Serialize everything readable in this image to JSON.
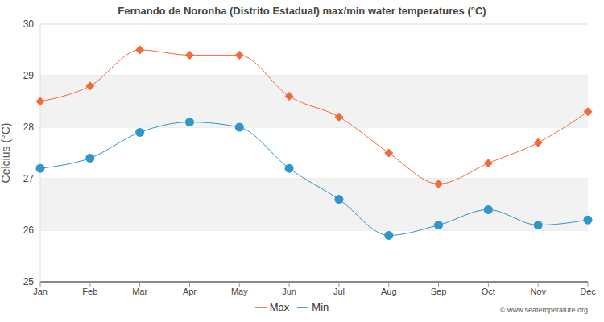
{
  "chart_data": {
    "type": "line",
    "title": "Fernando de Noronha (Distrito Estadual) max/min water temperatures (°C)",
    "y_label": "Celcius (°C)",
    "annotation": "© www.seatemperature.org",
    "categories": [
      "Jan",
      "Feb",
      "Mar",
      "Apr",
      "May",
      "Jun",
      "Jul",
      "Aug",
      "Sep",
      "Oct",
      "Nov",
      "Dec"
    ],
    "series": [
      {
        "name": "Max",
        "color": "#f26a35",
        "marker": "diamond",
        "values": [
          28.5,
          28.8,
          29.5,
          29.4,
          29.4,
          28.6,
          28.2,
          27.5,
          26.9,
          27.3,
          27.7,
          28.3
        ]
      },
      {
        "name": "Min",
        "color": "#2e96c9",
        "marker": "circle",
        "values": [
          27.2,
          27.4,
          27.9,
          28.1,
          28.0,
          27.2,
          26.6,
          25.9,
          26.1,
          26.4,
          26.1,
          26.2
        ]
      }
    ],
    "ylim": [
      25,
      30
    ],
    "yticks": [
      25,
      26,
      27,
      28,
      29,
      30
    ],
    "grid": true,
    "legend": "bottom",
    "line_style": "smooth"
  }
}
